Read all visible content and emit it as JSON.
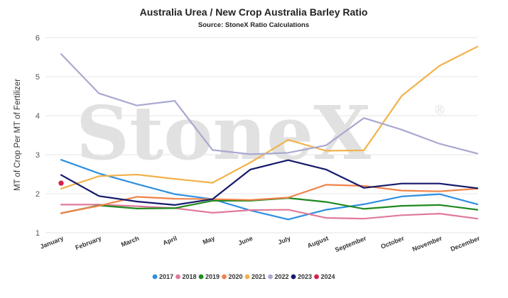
{
  "chart_data": {
    "type": "line",
    "title": "Australia Urea / New Crop Australia Barley Ratio",
    "subtitle": "Source: StoneX Ratio Calculations",
    "watermark": "StoneX",
    "watermark_mark": "®",
    "xlabel": "",
    "ylabel": "MT of Crop Per MT of Fertilizer",
    "ylim": [
      1,
      6
    ],
    "yticks": [
      "1",
      "2",
      "3",
      "4",
      "5",
      "6"
    ],
    "grid": "horizontal",
    "legend_position": "bottom",
    "categories": [
      "January",
      "February",
      "March",
      "April",
      "May",
      "June",
      "July",
      "August",
      "September",
      "October",
      "November",
      "December"
    ],
    "series": [
      {
        "name": "2017",
        "color": "#2e8fe0",
        "values": [
          2.87,
          2.52,
          2.25,
          1.99,
          1.86,
          1.57,
          1.34,
          1.59,
          1.73,
          1.93,
          1.99,
          1.73
        ]
      },
      {
        "name": "2018",
        "color": "#e07a9a",
        "values": [
          1.72,
          1.72,
          1.68,
          1.63,
          1.51,
          1.58,
          1.59,
          1.38,
          1.36,
          1.45,
          1.49,
          1.36
        ]
      },
      {
        "name": "2019",
        "color": "#1f8a1f",
        "values": [
          1.5,
          1.7,
          1.62,
          1.63,
          1.82,
          1.82,
          1.89,
          1.79,
          1.61,
          1.69,
          1.71,
          1.59
        ]
      },
      {
        "name": "2020",
        "color": "#f0834a",
        "values": [
          1.5,
          1.69,
          1.92,
          1.87,
          1.86,
          1.84,
          1.9,
          2.23,
          2.2,
          2.08,
          2.06,
          2.13
        ]
      },
      {
        "name": "2021",
        "color": "#f2b24a",
        "values": [
          2.13,
          2.45,
          2.49,
          2.38,
          2.28,
          2.8,
          3.38,
          3.1,
          3.11,
          4.51,
          5.28,
          5.77
        ]
      },
      {
        "name": "2022",
        "color": "#a9a9cf",
        "values": [
          5.58,
          4.57,
          4.26,
          4.38,
          3.12,
          3.01,
          3.05,
          3.24,
          3.94,
          3.64,
          3.28,
          3.03
        ]
      },
      {
        "name": "2023",
        "color": "#151a6b",
        "values": [
          2.48,
          1.94,
          1.8,
          1.71,
          1.86,
          2.62,
          2.86,
          2.62,
          2.15,
          2.26,
          2.26,
          2.14
        ]
      },
      {
        "name": "2024",
        "color": "#d4204a",
        "values": [
          2.27,
          null,
          null,
          null,
          null,
          null,
          null,
          null,
          null,
          null,
          null,
          null
        ]
      }
    ]
  }
}
